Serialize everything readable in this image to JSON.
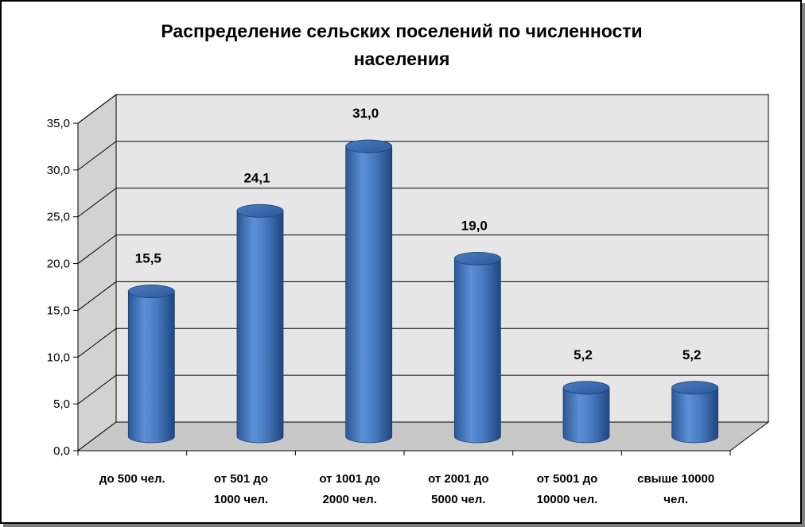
{
  "chart_data": {
    "type": "bar",
    "title": "Распределение сельских поселений по численности населения",
    "title_lines": [
      "Распределение сельских поселений по численности",
      "населения"
    ],
    "categories": [
      [
        "до 500 чел."
      ],
      [
        "от 501 до",
        "1000 чел."
      ],
      [
        "от 1001 до",
        "2000 чел."
      ],
      [
        "от 2001 до",
        "5000 чел."
      ],
      [
        "от 5001 до",
        "10000 чел."
      ],
      [
        "свыше 10000",
        "чел."
      ]
    ],
    "values": [
      15.5,
      24.1,
      31.0,
      19.0,
      5.2,
      5.2
    ],
    "value_labels": [
      "15,5",
      "24,1",
      "31,0",
      "19,0",
      "5,2",
      "5,2"
    ],
    "ylim": [
      0,
      35
    ],
    "yticks": [
      "0,0",
      "5,0",
      "10,0",
      "15,0",
      "20,0",
      "25,0",
      "30,0",
      "35,0"
    ],
    "xlabel": "",
    "ylabel": "",
    "grid": true,
    "legend": "none",
    "style": "3d-cylinder",
    "colors": {
      "bar": "#4f81bd",
      "bar_dark": "#254f8c",
      "bar_light": "#7fa6dc",
      "wall": "#e6e6e6",
      "floor": "#c8c8c8"
    }
  }
}
